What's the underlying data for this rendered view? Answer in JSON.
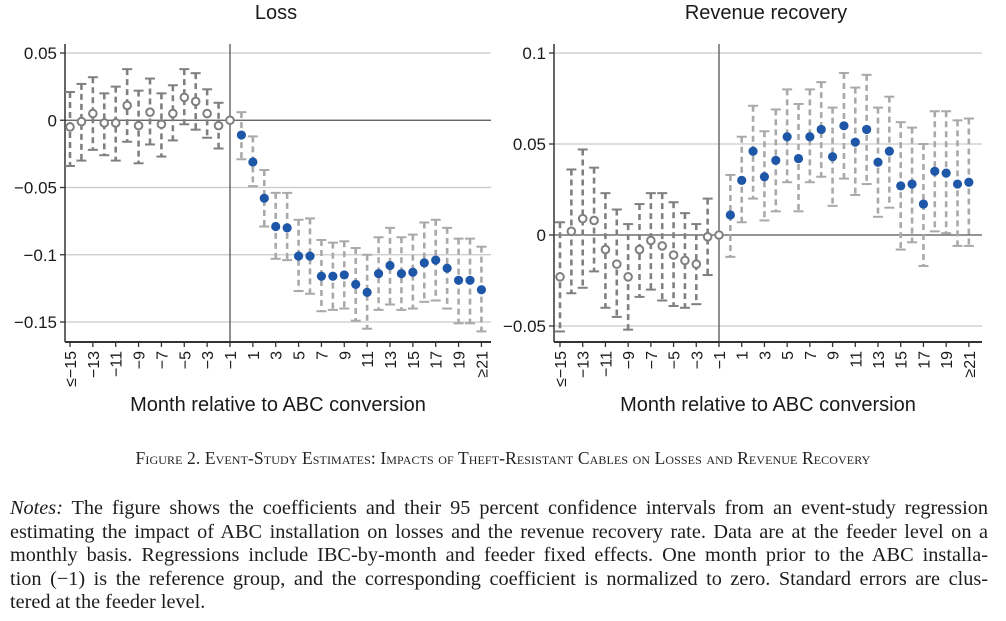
{
  "chart_data": [
    {
      "type": "scatter",
      "subtype": "event-study coefficients with 95% confidence intervals",
      "title": "Loss",
      "xlabel": "Month relative to ABC conversion",
      "ylabel": "",
      "ylim": [
        -0.165,
        0.057
      ],
      "yticks": [
        0.05,
        0,
        -0.05,
        -0.1,
        -0.15
      ],
      "ytick_labels": [
        "0.05",
        "0",
        "−0.05",
        "−0.1",
        "−0.15"
      ],
      "xticks": [
        -15,
        -13,
        -11,
        -9,
        -7,
        -5,
        -3,
        -1,
        1,
        3,
        5,
        7,
        9,
        11,
        13,
        15,
        17,
        19,
        21
      ],
      "xtick_labels": [
        "≤−15",
        "−13",
        "−11",
        "−9",
        "−7",
        "−5",
        "−3",
        "−1",
        "1",
        "3",
        "5",
        "7",
        "9",
        "11",
        "13",
        "15",
        "17",
        "19",
        "≥21"
      ],
      "reference_line_x": -1,
      "grid": true,
      "legend": "none",
      "series": [
        {
          "name": "pre-period (hollow markers)",
          "color": "#7f7f7f",
          "x": [
            -15,
            -14,
            -13,
            -12,
            -11,
            -10,
            -9,
            -8,
            -7,
            -6,
            -5,
            -4,
            -3,
            -2,
            -1
          ],
          "y": [
            -0.005,
            -0.001,
            0.005,
            -0.002,
            -0.002,
            0.011,
            -0.004,
            0.006,
            -0.003,
            0.005,
            0.017,
            0.014,
            0.005,
            -0.004,
            0
          ],
          "ci_low": [
            -0.034,
            -0.03,
            -0.022,
            -0.026,
            -0.03,
            -0.016,
            -0.032,
            -0.018,
            -0.027,
            -0.015,
            -0.003,
            -0.007,
            -0.013,
            -0.021,
            null
          ],
          "ci_high": [
            0.021,
            0.027,
            0.032,
            0.02,
            0.025,
            0.038,
            0.022,
            0.031,
            0.02,
            0.026,
            0.038,
            0.035,
            0.023,
            0.013,
            null
          ]
        },
        {
          "name": "post-period (filled markers)",
          "color": "#1f57a8",
          "x": [
            0,
            1,
            2,
            3,
            4,
            5,
            6,
            7,
            8,
            9,
            10,
            11,
            12,
            13,
            14,
            15,
            16,
            17,
            18,
            19,
            20,
            21
          ],
          "y": [
            -0.011,
            -0.031,
            -0.058,
            -0.079,
            -0.08,
            -0.101,
            -0.101,
            -0.116,
            -0.116,
            -0.115,
            -0.122,
            -0.128,
            -0.114,
            -0.108,
            -0.114,
            -0.113,
            -0.106,
            -0.104,
            -0.11,
            -0.119,
            -0.119,
            -0.126
          ],
          "ci_low": [
            -0.029,
            -0.049,
            -0.079,
            -0.103,
            -0.104,
            -0.127,
            -0.129,
            -0.142,
            -0.141,
            -0.14,
            -0.149,
            -0.155,
            -0.141,
            -0.137,
            -0.141,
            -0.14,
            -0.135,
            -0.134,
            -0.14,
            -0.151,
            -0.151,
            -0.157
          ],
          "ci_high": [
            0.006,
            -0.012,
            -0.037,
            -0.054,
            -0.054,
            -0.074,
            -0.073,
            -0.089,
            -0.091,
            -0.09,
            -0.095,
            -0.1,
            -0.087,
            -0.08,
            -0.087,
            -0.085,
            -0.076,
            -0.074,
            -0.08,
            -0.088,
            -0.088,
            -0.094
          ]
        }
      ]
    },
    {
      "type": "scatter",
      "subtype": "event-study coefficients with 95% confidence intervals",
      "title": "Revenue recovery",
      "xlabel": "Month relative to ABC conversion",
      "ylabel": "",
      "ylim": [
        -0.059,
        0.104
      ],
      "yticks": [
        0.1,
        0.05,
        0,
        -0.05
      ],
      "ytick_labels": [
        "0.1",
        "0.05",
        "0",
        "−0.05"
      ],
      "xticks": [
        -15,
        -13,
        -11,
        -9,
        -7,
        -5,
        -3,
        -1,
        1,
        3,
        5,
        7,
        9,
        11,
        13,
        15,
        17,
        19,
        21
      ],
      "xtick_labels": [
        "≤−15",
        "−13",
        "−11",
        "−9",
        "−7",
        "−5",
        "−3",
        "−1",
        "1",
        "3",
        "5",
        "7",
        "9",
        "11",
        "13",
        "15",
        "17",
        "19",
        "≥21"
      ],
      "reference_line_x": -1,
      "grid": true,
      "legend": "none",
      "series": [
        {
          "name": "pre-period (hollow markers)",
          "color": "#7f7f7f",
          "x": [
            -15,
            -14,
            -13,
            -12,
            -11,
            -10,
            -9,
            -8,
            -7,
            -6,
            -5,
            -4,
            -3,
            -2,
            -1
          ],
          "y": [
            -0.023,
            0.002,
            0.009,
            0.008,
            -0.008,
            -0.016,
            -0.023,
            -0.008,
            -0.003,
            -0.006,
            -0.011,
            -0.014,
            -0.016,
            -0.001,
            0
          ],
          "ci_low": [
            -0.053,
            -0.032,
            -0.029,
            -0.02,
            -0.04,
            -0.045,
            -0.052,
            -0.034,
            -0.03,
            -0.036,
            -0.039,
            -0.04,
            -0.038,
            -0.022,
            null
          ],
          "ci_high": [
            0.007,
            0.036,
            0.047,
            0.037,
            0.023,
            0.014,
            0.006,
            0.017,
            0.023,
            0.023,
            0.018,
            0.012,
            0.006,
            0.02,
            null
          ]
        },
        {
          "name": "post-period (filled markers)",
          "color": "#1f57a8",
          "x": [
            0,
            1,
            2,
            3,
            4,
            5,
            6,
            7,
            8,
            9,
            10,
            11,
            12,
            13,
            14,
            15,
            16,
            17,
            18,
            19,
            20,
            21
          ],
          "y": [
            0.011,
            0.03,
            0.046,
            0.032,
            0.041,
            0.054,
            0.042,
            0.054,
            0.058,
            0.043,
            0.06,
            0.051,
            0.058,
            0.04,
            0.046,
            0.027,
            0.028,
            0.017,
            0.035,
            0.034,
            0.028,
            0.029
          ],
          "ci_low": [
            -0.012,
            0.007,
            0.02,
            0.008,
            0.013,
            0.029,
            0.013,
            0.029,
            0.032,
            0.016,
            0.031,
            0.022,
            0.028,
            0.01,
            0.015,
            -0.008,
            -0.004,
            -0.017,
            0.002,
            0.001,
            -0.006,
            -0.006
          ],
          "ci_high": [
            0.033,
            0.054,
            0.071,
            0.057,
            0.069,
            0.08,
            0.072,
            0.08,
            0.084,
            0.07,
            0.089,
            0.081,
            0.088,
            0.07,
            0.076,
            0.062,
            0.059,
            0.05,
            0.068,
            0.068,
            0.063,
            0.064
          ]
        }
      ]
    }
  ],
  "caption": "Figure 2. Event-Study Estimates: Impacts of Theft-Resistant Cables on Losses and Revenue Recovery",
  "notes": {
    "lead": "Notes:",
    "lines": [
      " The figure shows the coefficients and their 95 percent confidence intervals from an event-study regression",
      "estimating the impact of ABC installation on losses and the revenue recovery rate. Data are at the feeder level on a",
      "monthly basis. Regressions include IBC-by-month and feeder fixed effects. One month prior to the ABC installa-",
      "tion (−1) is the reference group, and the corresponding coefficient is normalized to zero. Standard errors are clus-",
      "tered at the feeder level."
    ]
  }
}
